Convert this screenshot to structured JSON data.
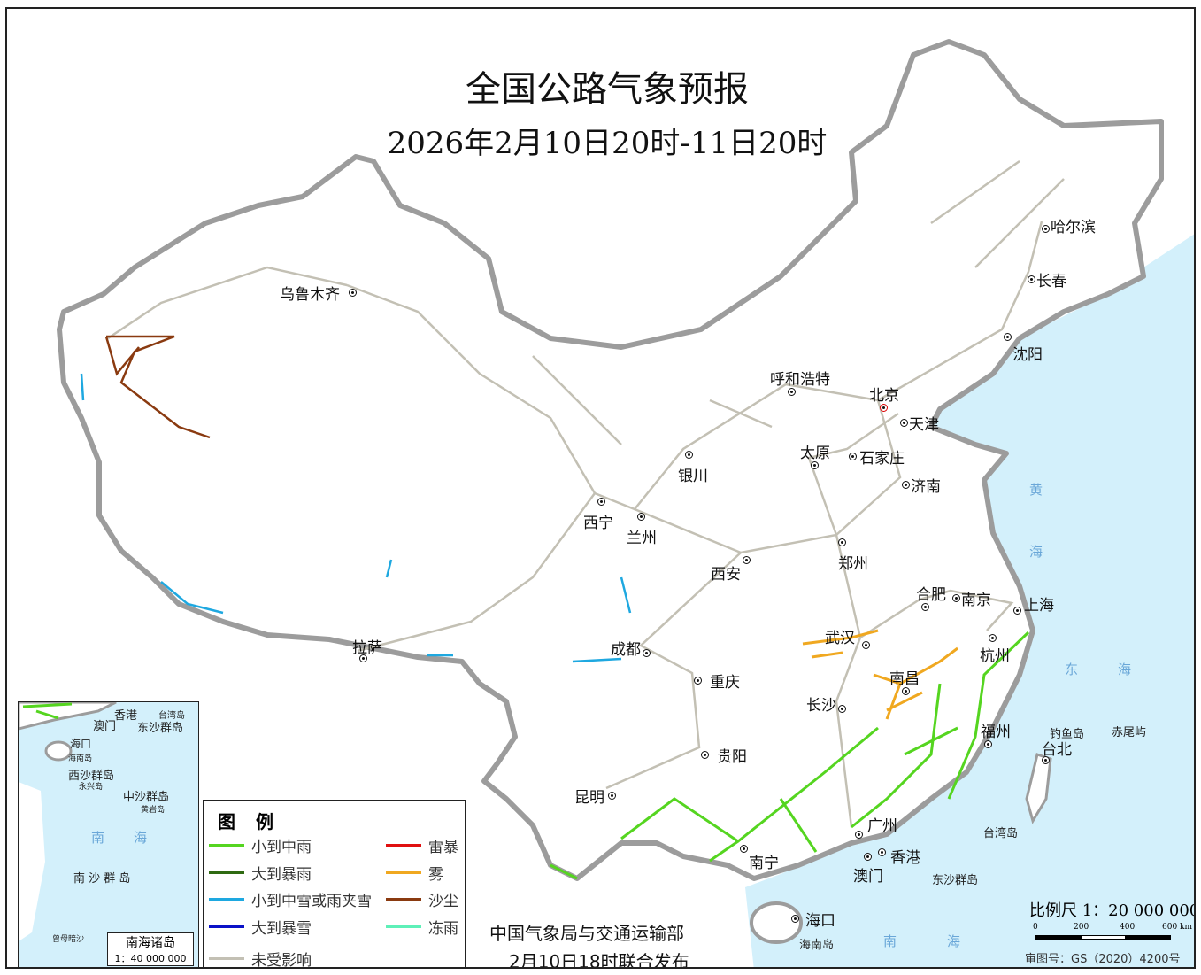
{
  "title": "全国公路气象预报",
  "subtitle": "2026年2月10日20时-11日20时",
  "legend": {
    "title": "图 例",
    "items": [
      {
        "label": "小到中雨",
        "color": "#55d520"
      },
      {
        "label": "大到暴雨",
        "color": "#2f6a12"
      },
      {
        "label": "小到中雪或雨夹雪",
        "color": "#1ea8e0"
      },
      {
        "label": "大到暴雪",
        "color": "#0a12c8"
      },
      {
        "label": "未受影响",
        "color": "#c3c0b4"
      },
      {
        "label": "雷暴",
        "color": "#e01010"
      },
      {
        "label": "雾",
        "color": "#f0a820"
      },
      {
        "label": "沙尘",
        "color": "#8a3a10"
      },
      {
        "label": "冻雨",
        "color": "#5ef0b8"
      }
    ]
  },
  "cities": [
    "乌鲁木齐",
    "拉萨",
    "西宁",
    "兰州",
    "银川",
    "呼和浩特",
    "北京",
    "天津",
    "石家庄",
    "太原",
    "济南",
    "郑州",
    "西安",
    "成都",
    "重庆",
    "贵阳",
    "昆明",
    "南宁",
    "广州",
    "香港",
    "澳门",
    "海口",
    "长沙",
    "武汉",
    "南昌",
    "合肥",
    "南京",
    "上海",
    "杭州",
    "福州",
    "台北",
    "哈尔滨",
    "长春",
    "沈阳"
  ],
  "islands": {
    "hainan": "海南岛",
    "taiwan": "台湾岛",
    "diaoyu": "钓鱼岛",
    "chiwei": "赤尾屿",
    "dongsha": "东沙群岛"
  },
  "seas": {
    "huang1": "黄",
    "huang2": "海",
    "dong1": "东",
    "dong2": "海",
    "nan1": "南",
    "nan2": "海"
  },
  "inset": {
    "labels": [
      "香港",
      "澳门",
      "台湾岛",
      "东沙群岛",
      "海口",
      "海南岛",
      "西沙群岛",
      "永兴岛",
      "中沙群岛",
      "黄岩岛",
      "南",
      "海",
      "南 沙 群 岛",
      "曾母暗沙"
    ],
    "box_title": "南海诸岛",
    "box_scale": "1：40 000 000"
  },
  "footer": {
    "line1": "中国气象局与交通运输部",
    "line2": "2月10日18时联合发布"
  },
  "scale": {
    "label": "比例尺 1：20 000 000",
    "ticks": [
      "0",
      "200",
      "400",
      "600 km"
    ],
    "approval": "审图号：GS（2020）4200号"
  },
  "colors": {
    "sea": "#d3f0fb",
    "land": "#ffffff",
    "border": "#9a9a9a"
  }
}
